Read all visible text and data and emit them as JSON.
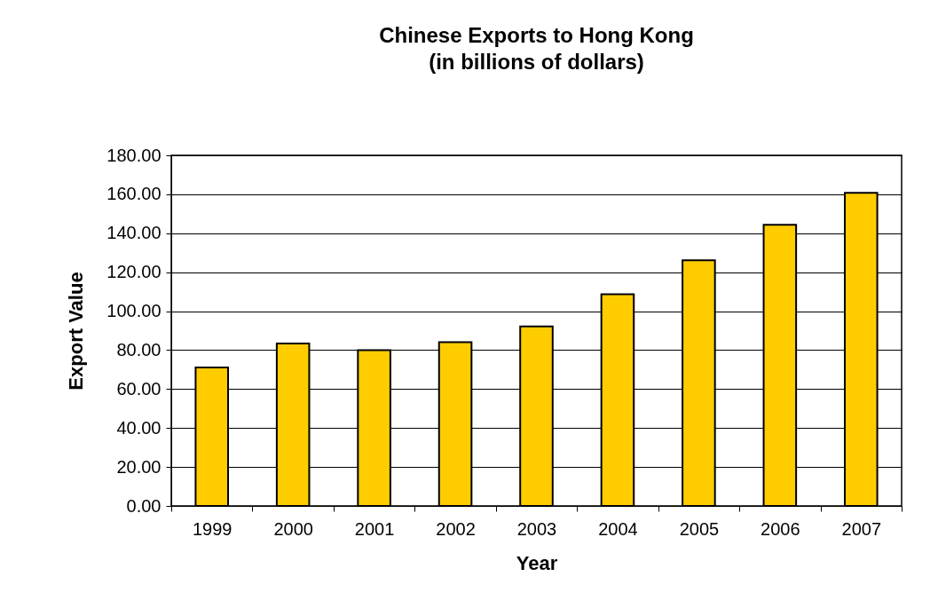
{
  "chart_data": {
    "type": "bar",
    "title": "Chinese Exports to Hong Kong",
    "subtitle": "(in billions of dollars)",
    "xlabel": "Year",
    "ylabel": "Export Value",
    "categories": [
      "1999",
      "2000",
      "2001",
      "2002",
      "2003",
      "2004",
      "2005",
      "2006",
      "2007"
    ],
    "values": [
      71.1,
      83.4,
      80.0,
      84.1,
      92.2,
      108.7,
      126.1,
      144.3,
      160.8
    ],
    "color": "#ffcc00",
    "ylim": [
      0,
      180
    ],
    "yticks": [
      {
        "value": 0,
        "label": "0.00"
      },
      {
        "value": 20,
        "label": "20.00"
      },
      {
        "value": 40,
        "label": "40.00"
      },
      {
        "value": 60,
        "label": "60.00"
      },
      {
        "value": 80,
        "label": "80.00"
      },
      {
        "value": 100,
        "label": "100.00"
      },
      {
        "value": 120,
        "label": "120.00"
      },
      {
        "value": 140,
        "label": "140.00"
      },
      {
        "value": 160,
        "label": "160.00"
      },
      {
        "value": 180,
        "label": "180.00"
      }
    ],
    "grid": "y"
  }
}
